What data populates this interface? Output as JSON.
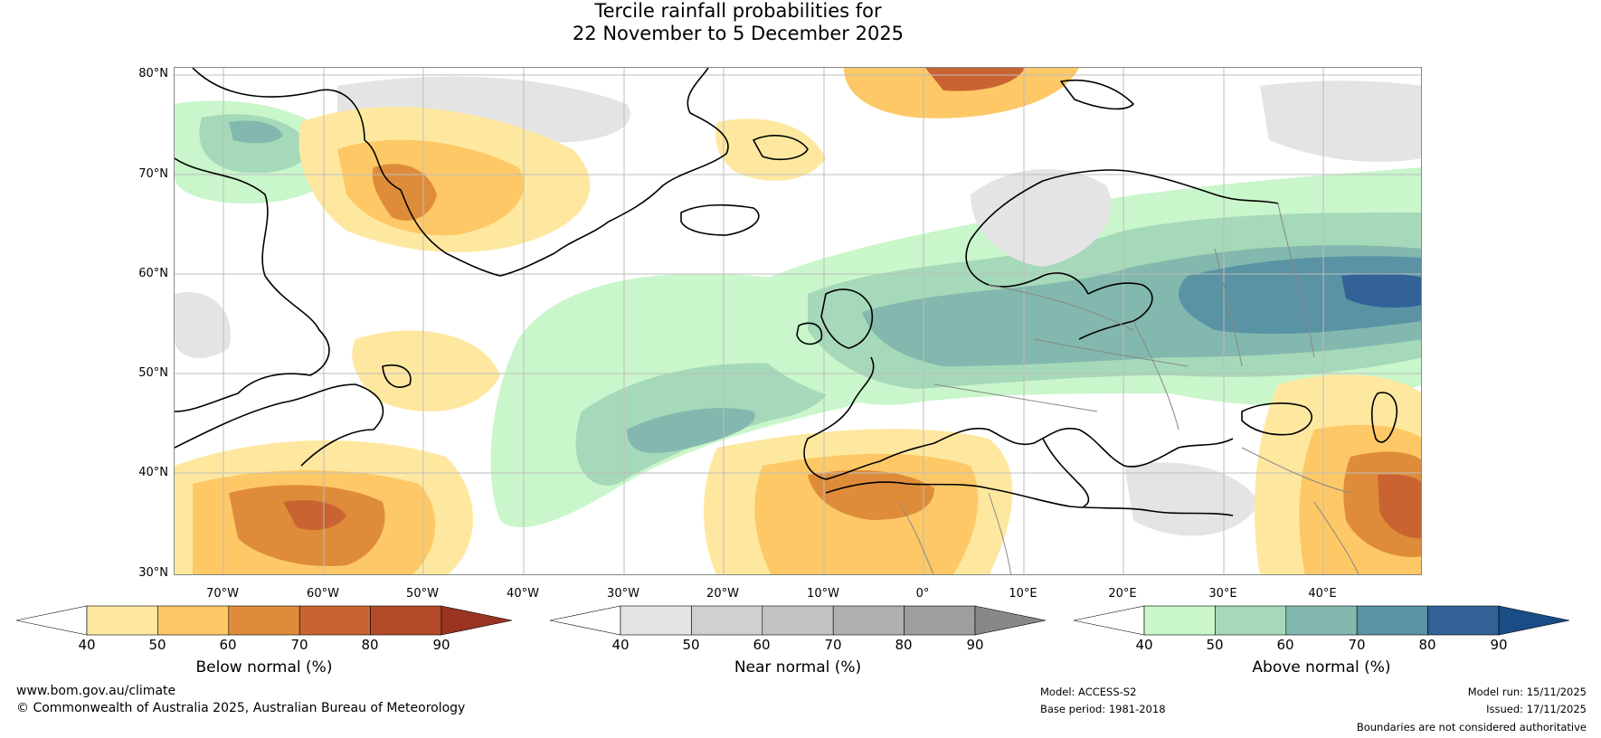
{
  "title": {
    "line1": "Tercile rainfall probabilities for",
    "line2": "22 November to 5 December 2025"
  },
  "axes": {
    "lat_labels": [
      "80°N",
      "70°N",
      "60°N",
      "50°N",
      "40°N",
      "30°N"
    ],
    "lon_labels": [
      "70°W",
      "60°W",
      "50°W",
      "40°W",
      "30°W",
      "20°W",
      "10°W",
      "0°",
      "10°E",
      "20°E",
      "30°E",
      "40°E"
    ]
  },
  "colorbars": {
    "below": {
      "title": "Below normal (%)",
      "ticks": [
        "40",
        "50",
        "60",
        "70",
        "80",
        "90"
      ],
      "colors": [
        "#ffffff",
        "#fee8a0",
        "#fdc865",
        "#df8c3a",
        "#c96432",
        "#b24a28",
        "#9a3420"
      ]
    },
    "near": {
      "title": "Near normal (%)",
      "ticks": [
        "40",
        "50",
        "60",
        "70",
        "80",
        "90"
      ],
      "colors": [
        "#ffffff",
        "#e4e4e4",
        "#d0d0d0",
        "#c2c2c2",
        "#b0b0b0",
        "#9e9e9e",
        "#888888"
      ]
    },
    "above": {
      "title": "Above normal (%)",
      "ticks": [
        "40",
        "50",
        "60",
        "70",
        "80",
        "90"
      ],
      "colors": [
        "#ffffff",
        "#c9f6ca",
        "#a6d9b9",
        "#82b8ae",
        "#5a93a4",
        "#326296",
        "#1a4c85"
      ]
    }
  },
  "footer": {
    "website": "www.bom.gov.au/climate",
    "copyright": "© Commonwealth of Australia 2025, Australian Bureau of Meteorology",
    "model": "Model: ACCESS-S2",
    "base_period": "Base period: 1981-2018",
    "model_run": "Model run: 15/11/2025",
    "issued": "Issued: 17/11/2025",
    "disclaimer": "Boundaries are not considered authoritative"
  }
}
